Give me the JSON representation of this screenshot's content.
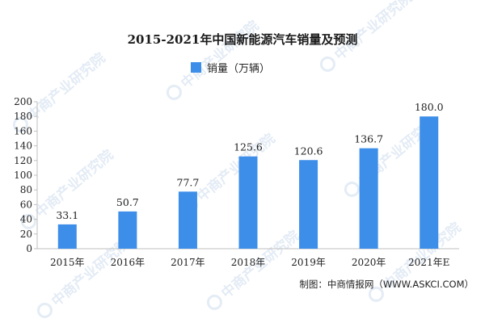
{
  "chart_data": {
    "type": "bar",
    "title": "2015-2021年中国新能源汽车销量及预测",
    "legend": {
      "label": "销量（万辆）",
      "placement": "top-center"
    },
    "categories": [
      "2015年",
      "2016年",
      "2017年",
      "2018年",
      "2019年",
      "2020年",
      "2021年E"
    ],
    "series": [
      {
        "name": "销量（万辆）",
        "values": [
          33.1,
          50.7,
          77.7,
          125.6,
          120.6,
          136.7,
          180.0
        ]
      }
    ],
    "data_labels": [
      "33.1",
      "50.7",
      "77.7",
      "125.6",
      "120.6",
      "136.7",
      "180.0"
    ],
    "yticks": [
      "0",
      "20",
      "40",
      "60",
      "80",
      "100",
      "120",
      "140",
      "160",
      "180",
      "200"
    ],
    "ylim": [
      0,
      200
    ],
    "grid": false,
    "bar_color": "#3d8ee8"
  },
  "source": "制图：中商情报网（WWW.ASKCI.COM）",
  "watermark": "中商产业研究院"
}
